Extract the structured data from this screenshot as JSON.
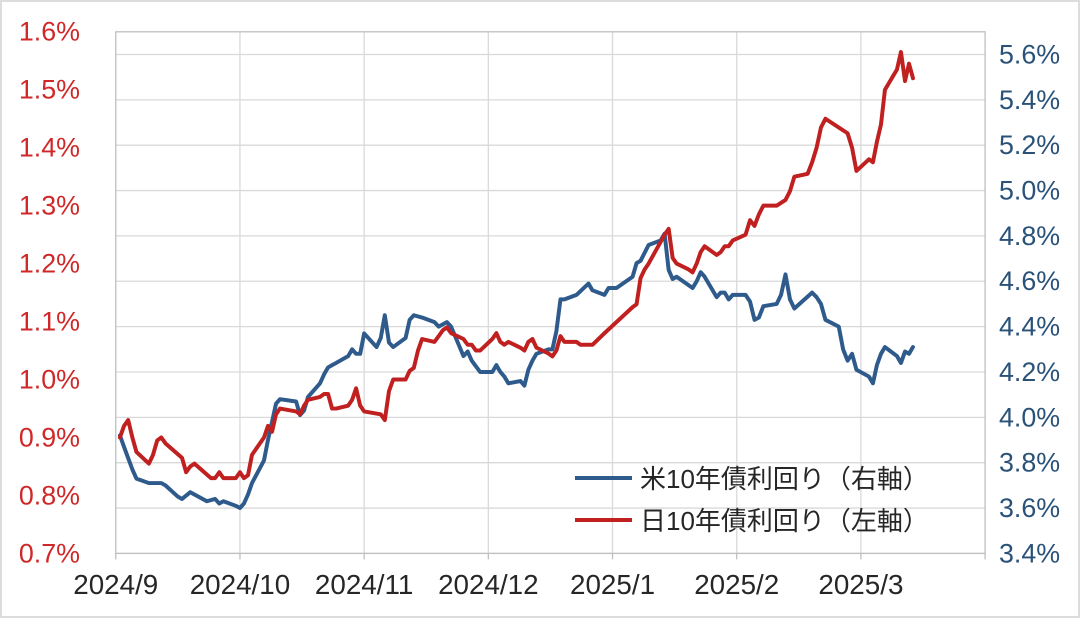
{
  "chart_data": {
    "type": "line",
    "title": "",
    "grid": true,
    "legend_position": "inside-bottom-right",
    "x_axis": {
      "tick_labels": [
        "2024/9",
        "2024/10",
        "2024/11",
        "2024/12",
        "2025/1",
        "2025/2",
        "2025/3"
      ],
      "label_color": "#262626"
    },
    "left_axis": {
      "min": 0.7,
      "max": 1.6,
      "tick_step": 0.1,
      "tick_labels": [
        "1.6%",
        "1.5%",
        "1.4%",
        "1.3%",
        "1.2%",
        "1.1%",
        "1.0%",
        "0.9%",
        "0.8%",
        "0.7%"
      ],
      "label_color": "#d02828"
    },
    "right_axis": {
      "min": 3.4,
      "max": 5.7,
      "tick_step": 0.2,
      "tick_max": 5.6,
      "tick_labels": [
        "5.6%",
        "5.4%",
        "5.2%",
        "5.0%",
        "4.8%",
        "4.6%",
        "4.4%",
        "4.2%",
        "4.0%",
        "3.8%",
        "3.6%",
        "3.4%"
      ],
      "label_color": "#2a5278"
    },
    "colors": {
      "us_line": "#2e5b8c",
      "jp_line": "#c02020",
      "gridline": "#d9d9d9",
      "plot_border": "#bfbfbf"
    },
    "legend": [
      {
        "label": "米10年債利回り（右軸）",
        "color": "#2e5b8c",
        "axis": "right"
      },
      {
        "label": "日10年債利回り（左軸）",
        "color": "#c02020",
        "axis": "left"
      }
    ],
    "series": [
      {
        "name": "米10年債利回り（右軸）",
        "axis": "right",
        "color": "#2e5b8c",
        "points": [
          [
            "2024-09-02",
            3.92
          ],
          [
            "2024-09-03",
            3.87
          ],
          [
            "2024-09-04",
            3.82
          ],
          [
            "2024-09-05",
            3.77
          ],
          [
            "2024-09-06",
            3.73
          ],
          [
            "2024-09-09",
            3.71
          ],
          [
            "2024-09-10",
            3.71
          ],
          [
            "2024-09-12",
            3.71
          ],
          [
            "2024-09-13",
            3.7
          ],
          [
            "2024-09-16",
            3.65
          ],
          [
            "2024-09-17",
            3.64
          ],
          [
            "2024-09-19",
            3.67
          ],
          [
            "2024-09-20",
            3.66
          ],
          [
            "2024-09-23",
            3.63
          ],
          [
            "2024-09-25",
            3.64
          ],
          [
            "2024-09-26",
            3.62
          ],
          [
            "2024-09-27",
            3.63
          ],
          [
            "2024-09-30",
            3.61
          ],
          [
            "2024-10-01",
            3.6
          ],
          [
            "2024-10-02",
            3.62
          ],
          [
            "2024-10-03",
            3.66
          ],
          [
            "2024-10-04",
            3.71
          ],
          [
            "2024-10-07",
            3.81
          ],
          [
            "2024-10-08",
            3.9
          ],
          [
            "2024-10-09",
            3.98
          ],
          [
            "2024-10-10",
            4.06
          ],
          [
            "2024-10-11",
            4.08
          ],
          [
            "2024-10-15",
            4.07
          ],
          [
            "2024-10-16",
            4.01
          ],
          [
            "2024-10-17",
            4.03
          ],
          [
            "2024-10-18",
            4.09
          ],
          [
            "2024-10-21",
            4.15
          ],
          [
            "2024-10-22",
            4.19
          ],
          [
            "2024-10-23",
            4.22
          ],
          [
            "2024-10-24",
            4.23
          ],
          [
            "2024-10-25",
            4.24
          ],
          [
            "2024-10-28",
            4.27
          ],
          [
            "2024-10-29",
            4.3
          ],
          [
            "2024-10-30",
            4.28
          ],
          [
            "2024-10-31",
            4.28
          ],
          [
            "2024-11-01",
            4.37
          ],
          [
            "2024-11-04",
            4.31
          ],
          [
            "2024-11-05",
            4.35
          ],
          [
            "2024-11-06",
            4.45
          ],
          [
            "2024-11-07",
            4.33
          ],
          [
            "2024-11-08",
            4.31
          ],
          [
            "2024-11-11",
            4.35
          ],
          [
            "2024-11-12",
            4.43
          ],
          [
            "2024-11-13",
            4.45
          ],
          [
            "2024-11-15",
            4.44
          ],
          [
            "2024-11-18",
            4.42
          ],
          [
            "2024-11-19",
            4.4
          ],
          [
            "2024-11-21",
            4.42
          ],
          [
            "2024-11-22",
            4.4
          ],
          [
            "2024-11-25",
            4.27
          ],
          [
            "2024-11-26",
            4.29
          ],
          [
            "2024-11-27",
            4.25
          ],
          [
            "2024-11-29",
            4.2
          ],
          [
            "2024-12-02",
            4.2
          ],
          [
            "2024-12-03",
            4.23
          ],
          [
            "2024-12-04",
            4.2
          ],
          [
            "2024-12-05",
            4.18
          ],
          [
            "2024-12-06",
            4.15
          ],
          [
            "2024-12-09",
            4.16
          ],
          [
            "2024-12-10",
            4.14
          ],
          [
            "2024-12-11",
            4.21
          ],
          [
            "2024-12-12",
            4.25
          ],
          [
            "2024-12-13",
            4.28
          ],
          [
            "2024-12-16",
            4.3
          ],
          [
            "2024-12-17",
            4.3
          ],
          [
            "2024-12-18",
            4.38
          ],
          [
            "2024-12-19",
            4.52
          ],
          [
            "2024-12-20",
            4.52
          ],
          [
            "2024-12-23",
            4.54
          ],
          [
            "2024-12-26",
            4.59
          ],
          [
            "2024-12-27",
            4.56
          ],
          [
            "2024-12-30",
            4.54
          ],
          [
            "2024-12-31",
            4.57
          ],
          [
            "2025-01-02",
            4.57
          ],
          [
            "2025-01-06",
            4.62
          ],
          [
            "2025-01-07",
            4.68
          ],
          [
            "2025-01-08",
            4.69
          ],
          [
            "2025-01-10",
            4.76
          ],
          [
            "2025-01-13",
            4.78
          ],
          [
            "2025-01-14",
            4.81
          ],
          [
            "2025-01-15",
            4.65
          ],
          [
            "2025-01-16",
            4.61
          ],
          [
            "2025-01-17",
            4.62
          ],
          [
            "2025-01-21",
            4.57
          ],
          [
            "2025-01-22",
            4.6
          ],
          [
            "2025-01-23",
            4.64
          ],
          [
            "2025-01-24",
            4.62
          ],
          [
            "2025-01-27",
            4.53
          ],
          [
            "2025-01-28",
            4.55
          ],
          [
            "2025-01-29",
            4.55
          ],
          [
            "2025-01-30",
            4.52
          ],
          [
            "2025-01-31",
            4.54
          ],
          [
            "2025-02-03",
            4.54
          ],
          [
            "2025-02-04",
            4.51
          ],
          [
            "2025-02-05",
            4.43
          ],
          [
            "2025-02-06",
            4.44
          ],
          [
            "2025-02-07",
            4.49
          ],
          [
            "2025-02-10",
            4.5
          ],
          [
            "2025-02-11",
            4.54
          ],
          [
            "2025-02-12",
            4.63
          ],
          [
            "2025-02-13",
            4.52
          ],
          [
            "2025-02-14",
            4.48
          ],
          [
            "2025-02-18",
            4.55
          ],
          [
            "2025-02-19",
            4.53
          ],
          [
            "2025-02-20",
            4.5
          ],
          [
            "2025-02-21",
            4.43
          ],
          [
            "2025-02-24",
            4.4
          ],
          [
            "2025-02-25",
            4.3
          ],
          [
            "2025-02-26",
            4.25
          ],
          [
            "2025-02-27",
            4.28
          ],
          [
            "2025-02-28",
            4.21
          ],
          [
            "2025-03-03",
            4.18
          ],
          [
            "2025-03-04",
            4.15
          ],
          [
            "2025-03-05",
            4.23
          ],
          [
            "2025-03-06",
            4.28
          ],
          [
            "2025-03-07",
            4.31
          ],
          [
            "2025-03-10",
            4.27
          ],
          [
            "2025-03-11",
            4.24
          ],
          [
            "2025-03-12",
            4.29
          ],
          [
            "2025-03-13",
            4.28
          ],
          [
            "2025-03-14",
            4.31
          ]
        ]
      },
      {
        "name": "日10年債利回り（左軸）",
        "axis": "left",
        "color": "#c02020",
        "points": [
          [
            "2024-09-02",
            0.9
          ],
          [
            "2024-09-03",
            0.92
          ],
          [
            "2024-09-04",
            0.93
          ],
          [
            "2024-09-05",
            0.9
          ],
          [
            "2024-09-06",
            0.875
          ],
          [
            "2024-09-09",
            0.855
          ],
          [
            "2024-09-10",
            0.87
          ],
          [
            "2024-09-11",
            0.895
          ],
          [
            "2024-09-12",
            0.9
          ],
          [
            "2024-09-13",
            0.89
          ],
          [
            "2024-09-17",
            0.865
          ],
          [
            "2024-09-18",
            0.84
          ],
          [
            "2024-09-19",
            0.85
          ],
          [
            "2024-09-20",
            0.855
          ],
          [
            "2024-09-24",
            0.83
          ],
          [
            "2024-09-25",
            0.83
          ],
          [
            "2024-09-26",
            0.84
          ],
          [
            "2024-09-27",
            0.83
          ],
          [
            "2024-09-30",
            0.83
          ],
          [
            "2024-10-01",
            0.84
          ],
          [
            "2024-10-02",
            0.83
          ],
          [
            "2024-10-03",
            0.835
          ],
          [
            "2024-10-04",
            0.87
          ],
          [
            "2024-10-07",
            0.9
          ],
          [
            "2024-10-08",
            0.92
          ],
          [
            "2024-10-09",
            0.91
          ],
          [
            "2024-10-10",
            0.94
          ],
          [
            "2024-10-11",
            0.95
          ],
          [
            "2024-10-15",
            0.945
          ],
          [
            "2024-10-16",
            0.94
          ],
          [
            "2024-10-17",
            0.955
          ],
          [
            "2024-10-18",
            0.965
          ],
          [
            "2024-10-21",
            0.97
          ],
          [
            "2024-10-22",
            0.975
          ],
          [
            "2024-10-23",
            0.975
          ],
          [
            "2024-10-24",
            0.95
          ],
          [
            "2024-10-25",
            0.95
          ],
          [
            "2024-10-28",
            0.955
          ],
          [
            "2024-10-29",
            0.965
          ],
          [
            "2024-10-30",
            0.985
          ],
          [
            "2024-10-31",
            0.955
          ],
          [
            "2024-11-01",
            0.945
          ],
          [
            "2024-11-05",
            0.94
          ],
          [
            "2024-11-06",
            0.93
          ],
          [
            "2024-11-07",
            0.98
          ],
          [
            "2024-11-08",
            1.0
          ],
          [
            "2024-11-11",
            1.0
          ],
          [
            "2024-11-12",
            1.015
          ],
          [
            "2024-11-13",
            1.02
          ],
          [
            "2024-11-14",
            1.05
          ],
          [
            "2024-11-15",
            1.07
          ],
          [
            "2024-11-18",
            1.065
          ],
          [
            "2024-11-19",
            1.075
          ],
          [
            "2024-11-20",
            1.085
          ],
          [
            "2024-11-21",
            1.09
          ],
          [
            "2024-11-22",
            1.08
          ],
          [
            "2024-11-25",
            1.07
          ],
          [
            "2024-11-26",
            1.06
          ],
          [
            "2024-11-27",
            1.06
          ],
          [
            "2024-11-28",
            1.05
          ],
          [
            "2024-11-29",
            1.05
          ],
          [
            "2024-12-02",
            1.07
          ],
          [
            "2024-12-03",
            1.08
          ],
          [
            "2024-12-04",
            1.065
          ],
          [
            "2024-12-05",
            1.06
          ],
          [
            "2024-12-06",
            1.065
          ],
          [
            "2024-12-09",
            1.055
          ],
          [
            "2024-12-10",
            1.05
          ],
          [
            "2024-12-11",
            1.065
          ],
          [
            "2024-12-12",
            1.07
          ],
          [
            "2024-12-13",
            1.055
          ],
          [
            "2024-12-16",
            1.045
          ],
          [
            "2024-12-17",
            1.04
          ],
          [
            "2024-12-18",
            1.05
          ],
          [
            "2024-12-19",
            1.075
          ],
          [
            "2024-12-20",
            1.065
          ],
          [
            "2024-12-23",
            1.065
          ],
          [
            "2024-12-24",
            1.06
          ],
          [
            "2024-12-26",
            1.06
          ],
          [
            "2024-12-27",
            1.06
          ],
          [
            "2024-12-30",
            1.08
          ],
          [
            "2025-01-06",
            1.125
          ],
          [
            "2025-01-07",
            1.13
          ],
          [
            "2025-01-08",
            1.175
          ],
          [
            "2025-01-09",
            1.19
          ],
          [
            "2025-01-10",
            1.2
          ],
          [
            "2025-01-14",
            1.25
          ],
          [
            "2025-01-15",
            1.26
          ],
          [
            "2025-01-16",
            1.21
          ],
          [
            "2025-01-17",
            1.2
          ],
          [
            "2025-01-20",
            1.19
          ],
          [
            "2025-01-21",
            1.185
          ],
          [
            "2025-01-22",
            1.2
          ],
          [
            "2025-01-23",
            1.22
          ],
          [
            "2025-01-24",
            1.23
          ],
          [
            "2025-01-27",
            1.215
          ],
          [
            "2025-01-28",
            1.22
          ],
          [
            "2025-01-29",
            1.23
          ],
          [
            "2025-01-30",
            1.23
          ],
          [
            "2025-01-31",
            1.24
          ],
          [
            "2025-02-03",
            1.25
          ],
          [
            "2025-02-04",
            1.275
          ],
          [
            "2025-02-05",
            1.265
          ],
          [
            "2025-02-06",
            1.285
          ],
          [
            "2025-02-07",
            1.3
          ],
          [
            "2025-02-10",
            1.3
          ],
          [
            "2025-02-12",
            1.31
          ],
          [
            "2025-02-13",
            1.325
          ],
          [
            "2025-02-14",
            1.35
          ],
          [
            "2025-02-17",
            1.355
          ],
          [
            "2025-02-18",
            1.375
          ],
          [
            "2025-02-19",
            1.4
          ],
          [
            "2025-02-20",
            1.435
          ],
          [
            "2025-02-21",
            1.45
          ],
          [
            "2025-02-25",
            1.43
          ],
          [
            "2025-02-26",
            1.425
          ],
          [
            "2025-02-27",
            1.4
          ],
          [
            "2025-02-28",
            1.36
          ],
          [
            "2025-03-03",
            1.38
          ],
          [
            "2025-03-04",
            1.375
          ],
          [
            "2025-03-05",
            1.41
          ],
          [
            "2025-03-06",
            1.44
          ],
          [
            "2025-03-07",
            1.5
          ],
          [
            "2025-03-10",
            1.535
          ],
          [
            "2025-03-11",
            1.565
          ],
          [
            "2025-03-12",
            1.515
          ],
          [
            "2025-03-13",
            1.545
          ],
          [
            "2025-03-14",
            1.52
          ]
        ]
      }
    ]
  }
}
